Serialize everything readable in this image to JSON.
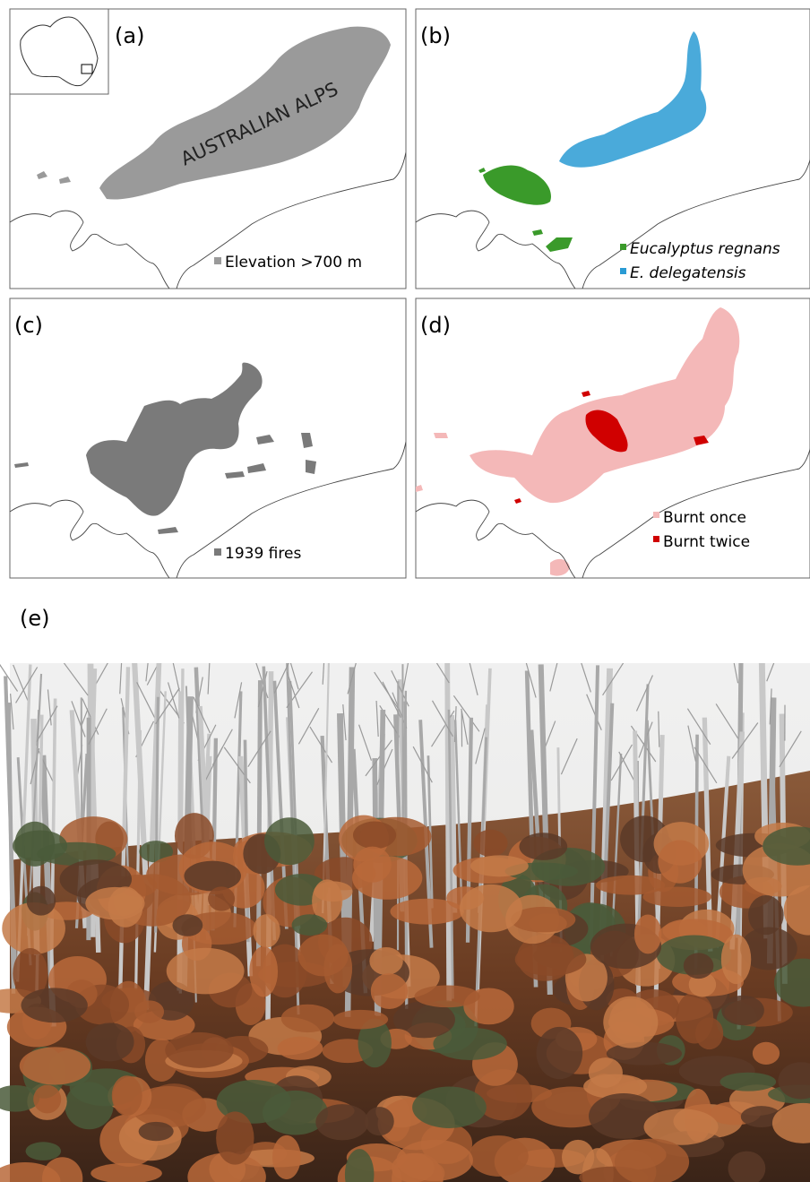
{
  "panels": [
    {
      "label": "(a)",
      "annotation": "AUSTRALIAN ALPS",
      "legend": [
        {
          "text": "Elevation >700 m",
          "color": "#9a9a9a"
        }
      ]
    },
    {
      "label": "(b)",
      "legend": [
        {
          "text": "Eucalyptus regnans",
          "color": "#3a9a2a"
        },
        {
          "text": "E. delegatensis",
          "color": "#2a9bd4"
        }
      ]
    },
    {
      "label": "(c)",
      "legend": [
        {
          "text": "1939 fires",
          "color": "#7a7a7a"
        }
      ]
    },
    {
      "label": "(d)",
      "legend": [
        {
          "text": "Burnt once",
          "color": "#f4b8b8"
        },
        {
          "text": "Burnt twice",
          "color": "#d00000"
        }
      ]
    }
  ],
  "photo": {
    "label": "(e)"
  }
}
